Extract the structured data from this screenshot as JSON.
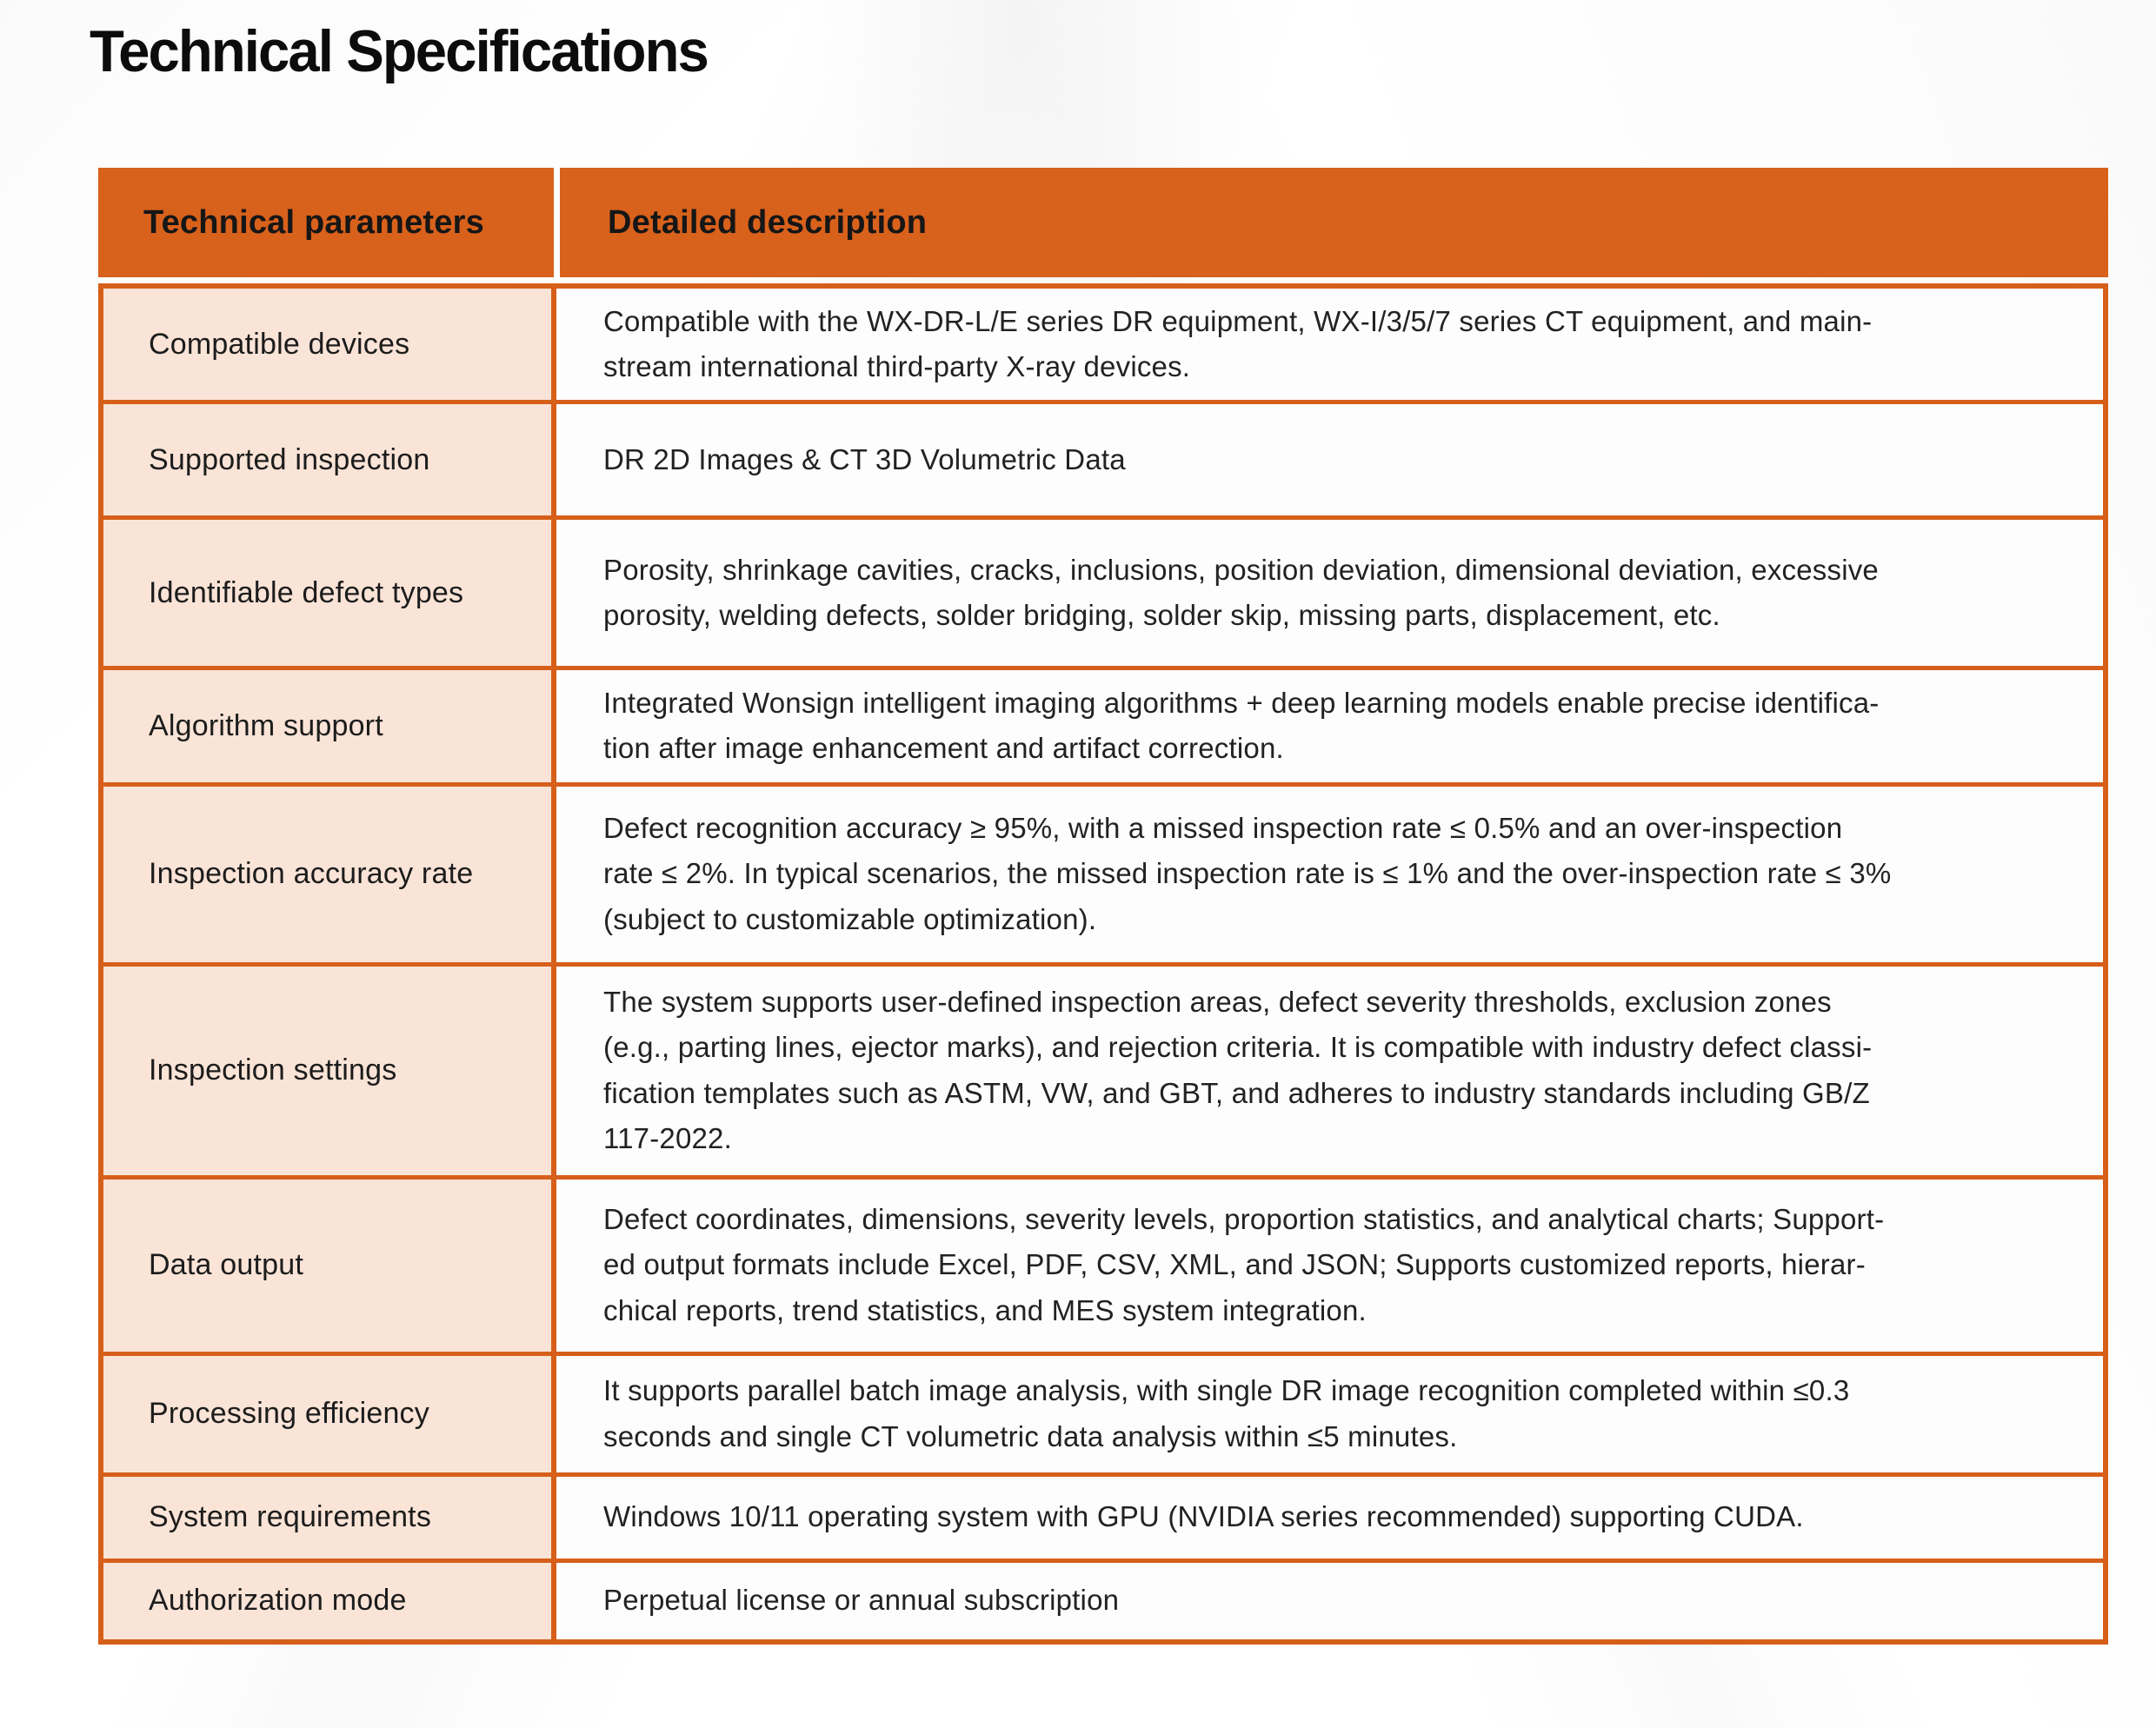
{
  "title": "Technical Specifications",
  "theme": {
    "header_bg": "#d8611c",
    "border_color": "#d65f1a",
    "param_cell_bg": "#fae4d7",
    "desc_cell_bg": "#fdfdfd",
    "header_text": "#161616"
  },
  "table": {
    "headers": [
      "Technical parameters",
      "Detailed description"
    ],
    "rows": [
      {
        "parameter": "Compatible devices",
        "description": "Compatible with the WX-DR-L/E series DR equipment, WX-I/3/5/7 series CT equipment, and main-\nstream international third-party X-ray devices."
      },
      {
        "parameter": "Supported inspection",
        "description": "DR 2D Images & CT 3D Volumetric Data"
      },
      {
        "parameter": "Identifiable defect types",
        "description": "Porosity, shrinkage cavities, cracks, inclusions, position deviation, dimensional deviation, excessive\nporosity, welding defects, solder bridging, solder skip, missing parts, displacement, etc."
      },
      {
        "parameter": "Algorithm support",
        "description": "Integrated Wonsign intelligent imaging algorithms + deep learning models enable precise identifica-\ntion after image enhancement and artifact correction."
      },
      {
        "parameter": "Inspection accuracy rate",
        "description": "Defect recognition accuracy ≥ 95%, with a missed inspection rate ≤ 0.5% and an over-inspection\nrate ≤ 2%. In typical scenarios, the missed inspection rate is ≤ 1% and the over-inspection rate ≤ 3%\n(subject to customizable optimization)."
      },
      {
        "parameter": "Inspection settings",
        "description": "The system supports user-defined inspection areas, defect severity thresholds, exclusion zones\n(e.g., parting lines, ejector marks), and rejection criteria. It is compatible with industry defect classi-\nfication templates such as ASTM, VW, and GBT, and adheres to industry standards including GB/Z\n117-2022."
      },
      {
        "parameter": "Data output",
        "description": "Defect coordinates, dimensions, severity levels, proportion statistics, and analytical charts; Support-\ned output formats include Excel, PDF, CSV, XML, and JSON; Supports customized reports, hierar-\nchical reports, trend statistics, and MES system integration."
      },
      {
        "parameter": "Processing efficiency",
        "description": "It supports parallel batch image analysis, with single DR image recognition completed within ≤0.3\nseconds and single CT volumetric data analysis within ≤5 minutes."
      },
      {
        "parameter": "System requirements",
        "description": "Windows 10/11 operating system with GPU (NVIDIA series recommended) supporting CUDA."
      },
      {
        "parameter": "Authorization mode",
        "description": "Perpetual license or annual subscription"
      }
    ]
  }
}
